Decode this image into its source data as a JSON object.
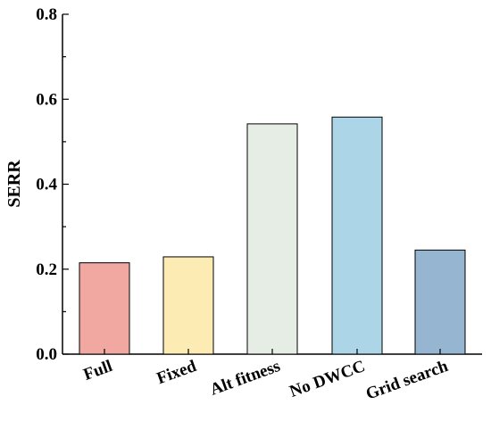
{
  "chart_data": {
    "type": "bar",
    "ylabel": "SERR",
    "ylim": [
      0.0,
      0.8
    ],
    "y_ticks": [
      "0.0",
      "0.2",
      "0.4",
      "0.6",
      "0.8"
    ],
    "categories": [
      "Full",
      "Fixed",
      "Alt fitness",
      "No DWCC",
      "Grid search"
    ],
    "values": [
      0.215,
      0.229,
      0.542,
      0.558,
      0.245
    ],
    "colors": [
      "#f0a8a0",
      "#fcecb4",
      "#e6ede4",
      "#acd6e8",
      "#95b5d0"
    ],
    "grid": false,
    "legend": "none"
  }
}
